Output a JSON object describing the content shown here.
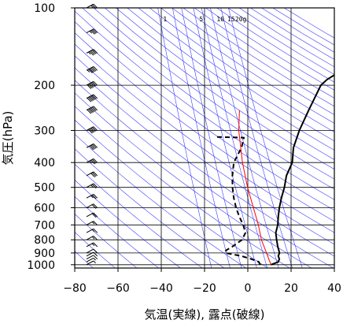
{
  "chart_data": {
    "type": "line",
    "subtype": "skew-T log-P emagram",
    "xlabel": "気温(実線), 露点(破線)",
    "ylabel": "気圧(hPa)",
    "xlim": [
      -80,
      40
    ],
    "ylim": [
      1030,
      100
    ],
    "y_scale": "log",
    "grid": true,
    "x_ticks": [
      -80,
      -60,
      -40,
      -20,
      0,
      20,
      40
    ],
    "y_ticks": [
      100,
      200,
      300,
      400,
      500,
      600,
      700,
      800,
      900,
      1000
    ],
    "mixing_ratio_labels": [
      "1",
      "5",
      "10",
      "15",
      "20g"
    ],
    "colors": {
      "temperature": "#000000",
      "dewpoint": "#000000",
      "reference": "#ff0000",
      "background_lines": "#3a3aff",
      "grid": "#000000"
    },
    "series": [
      {
        "style": "solid",
        "points": [
          [
            1000,
            9
          ],
          [
            975,
            11
          ],
          [
            950,
            10
          ],
          [
            925,
            8
          ],
          [
            900,
            7
          ],
          [
            850,
            3
          ],
          [
            800,
            -1
          ],
          [
            750,
            -5
          ],
          [
            700,
            -8
          ],
          [
            650,
            -12
          ],
          [
            600,
            -16
          ],
          [
            550,
            -20
          ],
          [
            500,
            -24
          ],
          [
            450,
            -29
          ],
          [
            400,
            -33
          ],
          [
            350,
            -40
          ],
          [
            300,
            -46
          ],
          [
            250,
            -52
          ],
          [
            220,
            -56
          ],
          [
            200,
            -59
          ],
          [
            190,
            -59
          ],
          [
            170,
            -56
          ],
          [
            150,
            -58
          ],
          [
            130,
            -58
          ],
          [
            115,
            -60
          ],
          [
            100,
            -62
          ]
        ]
      },
      {
        "style": "dashed",
        "points": [
          [
            1000,
            4
          ],
          [
            975,
            2
          ],
          [
            950,
            -3
          ],
          [
            925,
            -9
          ],
          [
            900,
            -18
          ],
          [
            880,
            -19
          ],
          [
            850,
            -18
          ],
          [
            800,
            -17
          ],
          [
            750,
            -19
          ],
          [
            700,
            -24
          ],
          [
            650,
            -30
          ],
          [
            600,
            -36
          ],
          [
            550,
            -42
          ],
          [
            500,
            -48
          ],
          [
            450,
            -54
          ],
          [
            400,
            -60
          ],
          [
            350,
            -64
          ],
          [
            320,
            -68
          ],
          [
            318,
            -82
          ]
        ]
      },
      {
        "style": "solid",
        "color": "#ff0000",
        "points": [
          [
            1000,
            9
          ],
          [
            900,
            1
          ],
          [
            800,
            -8
          ],
          [
            700,
            -17
          ],
          [
            600,
            -28
          ],
          [
            500,
            -41
          ],
          [
            400,
            -56
          ],
          [
            300,
            -74
          ],
          [
            250,
            -84
          ]
        ]
      }
    ],
    "wind_barbs": {
      "levels": [
        1000,
        975,
        950,
        925,
        900,
        850,
        800,
        750,
        700,
        650,
        600,
        550,
        500,
        450,
        400,
        350,
        300,
        250,
        225,
        200,
        175,
        150,
        125,
        100
      ],
      "speed_kt": [
        5,
        5,
        10,
        10,
        10,
        15,
        15,
        15,
        15,
        20,
        20,
        25,
        25,
        30,
        35,
        40,
        50,
        60,
        65,
        70,
        55,
        45,
        35,
        25
      ]
    }
  }
}
